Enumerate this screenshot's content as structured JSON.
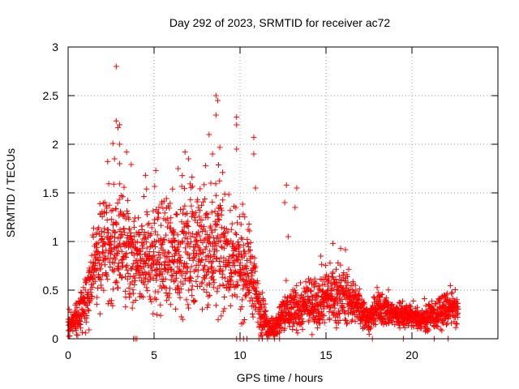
{
  "chart_data": {
    "type": "scatter",
    "title": "Day 292 of 2023, SRMTID for receiver ac72",
    "xlabel": "GPS time / hours",
    "ylabel": "SRMTID / TECUs",
    "xlim": [
      0,
      25
    ],
    "ylim": [
      0,
      3
    ],
    "xticks": [
      0,
      5,
      10,
      15,
      20
    ],
    "xtick_labels": [
      "0",
      "5",
      "10",
      "15",
      "20"
    ],
    "yticks": [
      0,
      0.5,
      1,
      1.5,
      2,
      2.5,
      3
    ],
    "ytick_labels": [
      "0",
      "0.5",
      "1",
      "1.5",
      "2",
      "2.5",
      "3"
    ],
    "grid": true,
    "marker": "plus",
    "colors": {
      "series": "#ff0000",
      "axis": "#000000",
      "grid": "#a0a0a0"
    },
    "series": [
      {
        "name": "SRMTID",
        "envelope": {
          "description": "Dense scatter of per-epoch SRMTID values; estimated local typical level and spread per hour",
          "x": [
            0.0,
            0.5,
            1.0,
            1.5,
            2.0,
            2.5,
            3.0,
            3.5,
            4.0,
            4.5,
            5.0,
            5.5,
            6.0,
            6.5,
            7.0,
            7.5,
            8.0,
            8.5,
            9.0,
            9.5,
            10.0,
            10.5,
            11.0,
            11.5,
            12.0,
            12.5,
            13.0,
            13.5,
            14.0,
            14.5,
            15.0,
            15.5,
            16.0,
            16.5,
            17.0,
            17.5,
            18.0,
            18.5,
            19.0,
            19.5,
            20.0,
            20.5,
            21.0,
            21.5,
            22.0,
            22.5
          ],
          "center": [
            0.15,
            0.2,
            0.35,
            0.75,
            0.9,
            0.95,
            0.95,
            0.85,
            0.75,
            0.8,
            0.85,
            0.85,
            0.85,
            0.9,
            0.9,
            0.95,
            0.9,
            0.95,
            0.9,
            0.8,
            0.7,
            0.75,
            0.4,
            0.15,
            0.1,
            0.25,
            0.3,
            0.3,
            0.35,
            0.4,
            0.45,
            0.45,
            0.45,
            0.4,
            0.3,
            0.2,
            0.3,
            0.3,
            0.25,
            0.25,
            0.22,
            0.2,
            0.22,
            0.25,
            0.3,
            0.3
          ],
          "spread": [
            0.1,
            0.15,
            0.25,
            0.35,
            0.45,
            0.5,
            0.5,
            0.45,
            0.4,
            0.45,
            0.5,
            0.5,
            0.5,
            0.5,
            0.5,
            0.5,
            0.55,
            0.55,
            0.5,
            0.45,
            0.45,
            0.4,
            0.3,
            0.15,
            0.1,
            0.2,
            0.2,
            0.2,
            0.2,
            0.25,
            0.25,
            0.25,
            0.25,
            0.2,
            0.15,
            0.1,
            0.15,
            0.15,
            0.12,
            0.12,
            0.1,
            0.1,
            0.12,
            0.15,
            0.15,
            0.15
          ]
        },
        "outliers": [
          {
            "x": 2.8,
            "y": 2.8
          },
          {
            "x": 2.8,
            "y": 2.24
          },
          {
            "x": 3.0,
            "y": 2.2
          },
          {
            "x": 2.9,
            "y": 2.17
          },
          {
            "x": 3.0,
            "y": 2.0
          },
          {
            "x": 2.7,
            "y": 1.85
          },
          {
            "x": 3.0,
            "y": 1.8
          },
          {
            "x": 8.6,
            "y": 2.5
          },
          {
            "x": 8.7,
            "y": 2.45
          },
          {
            "x": 8.6,
            "y": 2.3
          },
          {
            "x": 8.2,
            "y": 2.1
          },
          {
            "x": 9.8,
            "y": 2.28
          },
          {
            "x": 9.8,
            "y": 2.2
          },
          {
            "x": 9.8,
            "y": 1.95
          },
          {
            "x": 10.8,
            "y": 2.07
          },
          {
            "x": 10.8,
            "y": 1.9
          },
          {
            "x": 10.9,
            "y": 1.55
          },
          {
            "x": 12.7,
            "y": 1.58
          },
          {
            "x": 13.3,
            "y": 1.55
          },
          {
            "x": 12.6,
            "y": 1.4
          },
          {
            "x": 13.2,
            "y": 1.35
          },
          {
            "x": 6.8,
            "y": 1.92
          },
          {
            "x": 7.0,
            "y": 1.85
          },
          {
            "x": 6.4,
            "y": 1.75
          },
          {
            "x": 5.1,
            "y": 1.73
          },
          {
            "x": 4.5,
            "y": 1.68
          },
          {
            "x": 8.0,
            "y": 1.78
          },
          {
            "x": 8.4,
            "y": 1.9
          },
          {
            "x": 12.8,
            "y": 1.05
          },
          {
            "x": 14.7,
            "y": 0.85
          },
          {
            "x": 15.4,
            "y": 0.98
          },
          {
            "x": 15.7,
            "y": 0.78
          }
        ],
        "zeros_x": [
          3.8,
          3.9,
          4.0,
          9.8,
          10.0,
          10.2,
          10.4,
          11.1,
          11.3,
          11.6,
          12.0,
          12.3,
          17.7,
          19.5,
          21.3,
          22.1
        ]
      }
    ]
  }
}
